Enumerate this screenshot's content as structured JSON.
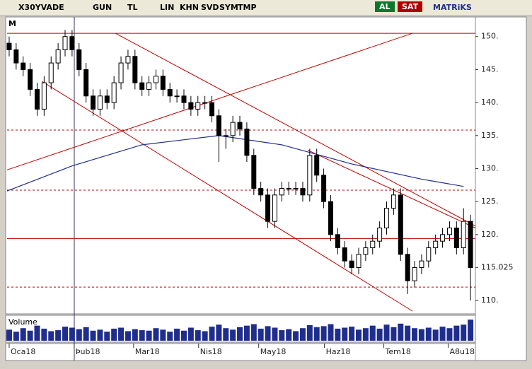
{
  "toolbar": {
    "symbol": "X30YVADE",
    "items": [
      "GUN",
      "TL",
      "LIN",
      "KHN",
      "SVD",
      "SYM",
      "TMP"
    ],
    "buy": "AL",
    "sell": "SAT",
    "brand": "MATRiKS"
  },
  "chart_data": {
    "type": "candlestick",
    "corner_label": "M",
    "xlim": [
      -0.3,
      66.7
    ],
    "ylim": [
      108.2,
      153.4
    ],
    "xticks": [
      {
        "value": 0,
        "label": "Oca18"
      },
      {
        "value": 9.3,
        "label": "Þub18"
      },
      {
        "value": 17.8,
        "label": "Mar18"
      },
      {
        "value": 27.1,
        "label": "Nis18"
      },
      {
        "value": 35.7,
        "label": "May18"
      },
      {
        "value": 45.1,
        "label": "Haz18"
      },
      {
        "value": 53.6,
        "label": "Tem18"
      },
      {
        "value": 62.8,
        "label": "A8u18"
      }
    ],
    "yticks": [
      {
        "value": 150,
        "label": "150."
      },
      {
        "value": 145,
        "label": "145."
      },
      {
        "value": 140,
        "label": "140."
      },
      {
        "value": 135,
        "label": "135."
      },
      {
        "value": 130,
        "label": "130."
      },
      {
        "value": 125,
        "label": "125."
      },
      {
        "value": 120,
        "label": "120."
      },
      115.025,
      {
        "value": 110,
        "label": "110."
      }
    ],
    "series": [
      {
        "name": "X30YVADE",
        "color": "#000000",
        "values": [
          [
            149,
            150,
            147,
            148
          ],
          [
            148,
            149,
            145,
            146
          ],
          [
            146,
            147,
            144,
            145
          ],
          [
            145,
            146,
            141,
            142
          ],
          [
            142,
            143,
            138,
            139
          ],
          [
            139,
            144,
            138,
            143
          ],
          [
            143,
            147,
            142,
            146
          ],
          [
            146,
            149,
            145,
            148
          ],
          [
            148,
            151,
            147,
            150
          ],
          [
            150,
            151,
            147,
            148
          ],
          [
            148,
            149,
            144,
            145
          ],
          [
            145,
            146,
            140,
            141
          ],
          [
            141,
            142,
            138,
            139
          ],
          [
            139,
            142,
            138,
            141
          ],
          [
            141,
            142,
            139,
            140
          ],
          [
            140,
            144,
            139,
            143
          ],
          [
            143,
            147,
            142,
            146
          ],
          [
            146,
            148,
            145,
            147
          ],
          [
            147,
            148,
            142,
            143
          ],
          [
            143,
            144,
            141,
            142
          ],
          [
            142,
            144,
            141,
            143
          ],
          [
            143,
            145,
            142,
            144
          ],
          [
            144,
            145,
            141,
            142
          ],
          [
            142,
            143,
            140,
            141
          ],
          [
            141,
            142,
            140,
            141
          ],
          [
            141,
            142,
            139,
            140
          ],
          [
            140,
            141,
            138,
            139
          ],
          [
            139,
            141,
            138,
            140
          ],
          [
            140,
            141,
            139,
            140
          ],
          [
            140,
            141,
            137,
            138
          ],
          [
            138,
            139,
            131,
            135
          ],
          [
            135,
            136,
            133,
            135
          ],
          [
            135,
            138,
            134,
            137
          ],
          [
            137,
            138,
            135,
            136
          ],
          [
            136,
            137,
            131,
            132
          ],
          [
            132,
            133,
            126,
            127
          ],
          [
            127,
            128,
            125,
            126
          ],
          [
            126,
            127,
            121,
            122
          ],
          [
            122,
            127,
            121,
            126
          ],
          [
            126,
            128,
            125,
            127
          ],
          [
            127,
            128,
            126,
            127
          ],
          [
            127,
            128,
            126,
            127
          ],
          [
            127,
            128,
            125,
            126
          ],
          [
            126,
            133,
            125,
            132
          ],
          [
            132,
            133,
            128,
            129
          ],
          [
            129,
            130,
            124,
            125
          ],
          [
            125,
            126,
            119,
            120
          ],
          [
            120,
            121,
            117,
            118
          ],
          [
            118,
            119,
            115,
            116
          ],
          [
            116,
            117,
            114,
            115
          ],
          [
            115,
            118,
            114,
            117
          ],
          [
            117,
            119,
            116,
            118
          ],
          [
            118,
            120,
            117,
            119
          ],
          [
            119,
            122,
            118,
            121
          ],
          [
            121,
            125,
            120,
            124
          ],
          [
            124,
            127,
            123,
            126
          ],
          [
            126,
            127,
            116,
            117
          ],
          [
            117,
            118,
            111,
            113
          ],
          [
            113,
            116,
            112,
            115
          ],
          [
            115,
            117,
            114,
            116
          ],
          [
            116,
            119,
            115,
            118
          ],
          [
            118,
            120,
            117,
            119
          ],
          [
            119,
            121,
            118,
            120
          ],
          [
            120,
            122,
            119,
            121
          ],
          [
            121,
            122,
            117,
            118
          ],
          [
            118,
            124,
            117,
            122
          ],
          [
            122,
            123,
            110,
            115
          ]
        ]
      }
    ],
    "moving_average": {
      "color": "#1f2e8c",
      "x": [
        -0.3,
        9,
        19,
        30,
        39,
        49,
        59,
        65
      ],
      "values": [
        126.6,
        130.4,
        133.6,
        135.0,
        133.6,
        130.7,
        128.4,
        127.3
      ]
    },
    "trend_lines": {
      "color": "#c00000",
      "lines": [
        {
          "x": [
            -0.3,
            66.7
          ],
          "y": [
            150.5,
            150.5
          ]
        },
        {
          "x": [
            -0.3,
            66.7
          ],
          "y": [
            119.4,
            119.4
          ]
        },
        {
          "x": [
            -0.3,
            66.7
          ],
          "y": [
            135.84,
            135.84
          ],
          "dashed": true
        },
        {
          "x": [
            -0.3,
            66.7
          ],
          "y": [
            126.73,
            126.73
          ],
          "dashed": true
        },
        {
          "x": [
            -0.3,
            66.7
          ],
          "y": [
            112.04,
            112.04
          ],
          "dashed": true
        },
        {
          "x": [
            15.2,
            66.7
          ],
          "y": [
            150.5,
            121.3
          ]
        },
        {
          "x": [
            4.7,
            57.7
          ],
          "y": [
            143.2,
            108.4
          ]
        },
        {
          "x": [
            -0.3,
            57.7
          ],
          "y": [
            129.8,
            150.5
          ]
        },
        {
          "x": [
            42.7,
            66.7
          ],
          "y": [
            132.8,
            121.0
          ]
        }
      ]
    },
    "volume": {
      "title": "Volume",
      "color": "#1f2e8c",
      "ylim": [
        0,
        45000000
      ],
      "values": [
        22000000,
        18000000,
        25000000,
        20000000,
        30000000,
        24000000,
        19000000,
        21000000,
        28000000,
        26000000,
        23000000,
        27000000,
        20000000,
        22000000,
        18000000,
        24000000,
        26000000,
        19000000,
        23000000,
        21000000,
        20000000,
        25000000,
        22000000,
        18000000,
        24000000,
        20000000,
        26000000,
        21000000,
        19000000,
        28000000,
        32000000,
        25000000,
        22000000,
        27000000,
        30000000,
        33000000,
        24000000,
        29000000,
        26000000,
        21000000,
        23000000,
        19000000,
        25000000,
        31000000,
        27000000,
        29000000,
        33000000,
        24000000,
        26000000,
        28000000,
        22000000,
        25000000,
        30000000,
        24000000,
        32000000,
        27000000,
        34000000,
        30000000,
        25000000,
        23000000,
        26000000,
        22000000,
        28000000,
        25000000,
        30000000,
        32000000,
        42000000
      ]
    }
  }
}
